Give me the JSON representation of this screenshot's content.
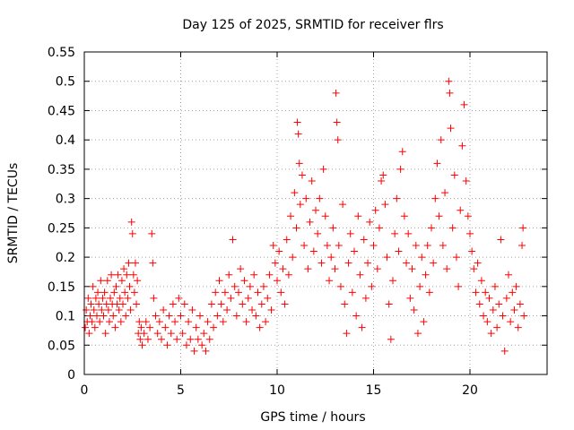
{
  "chart_data": {
    "type": "scatter",
    "title": "Day 125 of 2025, SRMTID for receiver flrs",
    "xlabel": "GPS time / hours",
    "ylabel": "SRMTID / TECUs",
    "xlim": [
      0,
      24
    ],
    "ylim": [
      0,
      0.55
    ],
    "xticks": [
      0,
      5,
      10,
      15,
      20
    ],
    "yticks": [
      0,
      0.05,
      0.1,
      0.15,
      0.2,
      0.25,
      0.3,
      0.35,
      0.4,
      0.45,
      0.5,
      0.55
    ],
    "xtick_labels": [
      "0",
      "5",
      "10",
      "15",
      "20"
    ],
    "ytick_labels": [
      "0",
      "0.05",
      "0.1",
      "0.15",
      "0.2",
      "0.25",
      "0.3",
      "0.35",
      "0.4",
      "0.45",
      "0.5",
      "0.55"
    ],
    "grid": true,
    "marker": "plus",
    "color": "#ff0000",
    "points": [
      [
        0.05,
        0.08
      ],
      [
        0.1,
        0.11
      ],
      [
        0.15,
        0.09
      ],
      [
        0.2,
        0.13
      ],
      [
        0.25,
        0.07
      ],
      [
        0.3,
        0.1
      ],
      [
        0.35,
        0.12
      ],
      [
        0.4,
        0.09
      ],
      [
        0.45,
        0.15
      ],
      [
        0.5,
        0.11
      ],
      [
        0.55,
        0.08
      ],
      [
        0.6,
        0.13
      ],
      [
        0.65,
        0.1
      ],
      [
        0.7,
        0.14
      ],
      [
        0.75,
        0.12
      ],
      [
        0.8,
        0.09
      ],
      [
        0.85,
        0.16
      ],
      [
        0.9,
        0.11
      ],
      [
        0.95,
        0.13
      ],
      [
        1.0,
        0.1
      ],
      [
        1.05,
        0.14
      ],
      [
        1.1,
        0.07
      ],
      [
        1.15,
        0.12
      ],
      [
        1.2,
        0.16
      ],
      [
        1.25,
        0.11
      ],
      [
        1.3,
        0.09
      ],
      [
        1.35,
        0.13
      ],
      [
        1.4,
        0.17
      ],
      [
        1.45,
        0.12
      ],
      [
        1.5,
        0.1
      ],
      [
        1.55,
        0.14
      ],
      [
        1.6,
        0.08
      ],
      [
        1.65,
        0.15
      ],
      [
        1.7,
        0.12
      ],
      [
        1.75,
        0.17
      ],
      [
        1.8,
        0.11
      ],
      [
        1.85,
        0.13
      ],
      [
        1.9,
        0.09
      ],
      [
        1.95,
        0.16
      ],
      [
        2.0,
        0.12
      ],
      [
        2.05,
        0.18
      ],
      [
        2.1,
        0.14
      ],
      [
        2.15,
        0.1
      ],
      [
        2.2,
        0.17
      ],
      [
        2.25,
        0.13
      ],
      [
        2.3,
        0.19
      ],
      [
        2.35,
        0.15
      ],
      [
        2.4,
        0.11
      ],
      [
        2.45,
        0.26
      ],
      [
        2.5,
        0.24
      ],
      [
        2.55,
        0.17
      ],
      [
        2.6,
        0.14
      ],
      [
        2.65,
        0.19
      ],
      [
        2.7,
        0.12
      ],
      [
        2.75,
        0.16
      ],
      [
        2.8,
        0.07
      ],
      [
        2.85,
        0.09
      ],
      [
        2.9,
        0.06
      ],
      [
        2.95,
        0.08
      ],
      [
        3.0,
        0.05
      ],
      [
        3.1,
        0.07
      ],
      [
        3.2,
        0.09
      ],
      [
        3.3,
        0.06
      ],
      [
        3.4,
        0.08
      ],
      [
        3.5,
        0.24
      ],
      [
        3.55,
        0.19
      ],
      [
        3.6,
        0.13
      ],
      [
        3.7,
        0.1
      ],
      [
        3.8,
        0.07
      ],
      [
        3.9,
        0.09
      ],
      [
        4.0,
        0.06
      ],
      [
        4.1,
        0.11
      ],
      [
        4.2,
        0.08
      ],
      [
        4.3,
        0.05
      ],
      [
        4.4,
        0.1
      ],
      [
        4.5,
        0.07
      ],
      [
        4.6,
        0.12
      ],
      [
        4.7,
        0.09
      ],
      [
        4.8,
        0.06
      ],
      [
        4.9,
        0.13
      ],
      [
        5.0,
        0.1
      ],
      [
        5.1,
        0.07
      ],
      [
        5.2,
        0.12
      ],
      [
        5.3,
        0.05
      ],
      [
        5.4,
        0.09
      ],
      [
        5.5,
        0.06
      ],
      [
        5.6,
        0.11
      ],
      [
        5.7,
        0.04
      ],
      [
        5.8,
        0.08
      ],
      [
        5.9,
        0.06
      ],
      [
        6.0,
        0.1
      ],
      [
        6.1,
        0.05
      ],
      [
        6.2,
        0.07
      ],
      [
        6.3,
        0.04
      ],
      [
        6.4,
        0.09
      ],
      [
        6.5,
        0.06
      ],
      [
        6.6,
        0.12
      ],
      [
        6.7,
        0.08
      ],
      [
        6.8,
        0.14
      ],
      [
        6.9,
        0.1
      ],
      [
        7.0,
        0.16
      ],
      [
        7.1,
        0.12
      ],
      [
        7.2,
        0.09
      ],
      [
        7.3,
        0.14
      ],
      [
        7.4,
        0.11
      ],
      [
        7.5,
        0.17
      ],
      [
        7.6,
        0.13
      ],
      [
        7.7,
        0.23
      ],
      [
        7.8,
        0.15
      ],
      [
        7.9,
        0.1
      ],
      [
        8.0,
        0.14
      ],
      [
        8.1,
        0.18
      ],
      [
        8.2,
        0.12
      ],
      [
        8.3,
        0.16
      ],
      [
        8.4,
        0.09
      ],
      [
        8.5,
        0.13
      ],
      [
        8.6,
        0.15
      ],
      [
        8.7,
        0.11
      ],
      [
        8.8,
        0.17
      ],
      [
        8.9,
        0.1
      ],
      [
        9.0,
        0.14
      ],
      [
        9.1,
        0.08
      ],
      [
        9.2,
        0.12
      ],
      [
        9.3,
        0.15
      ],
      [
        9.4,
        0.09
      ],
      [
        9.5,
        0.13
      ],
      [
        9.6,
        0.17
      ],
      [
        9.7,
        0.11
      ],
      [
        9.8,
        0.22
      ],
      [
        9.9,
        0.19
      ],
      [
        10.0,
        0.16
      ],
      [
        10.1,
        0.21
      ],
      [
        10.2,
        0.14
      ],
      [
        10.3,
        0.18
      ],
      [
        10.4,
        0.12
      ],
      [
        10.5,
        0.23
      ],
      [
        10.6,
        0.17
      ],
      [
        10.7,
        0.27
      ],
      [
        10.8,
        0.2
      ],
      [
        10.9,
        0.31
      ],
      [
        11.0,
        0.25
      ],
      [
        11.05,
        0.43
      ],
      [
        11.1,
        0.41
      ],
      [
        11.15,
        0.36
      ],
      [
        11.2,
        0.29
      ],
      [
        11.3,
        0.34
      ],
      [
        11.4,
        0.22
      ],
      [
        11.5,
        0.3
      ],
      [
        11.6,
        0.18
      ],
      [
        11.7,
        0.26
      ],
      [
        11.8,
        0.33
      ],
      [
        11.9,
        0.21
      ],
      [
        12.0,
        0.28
      ],
      [
        12.1,
        0.24
      ],
      [
        12.2,
        0.3
      ],
      [
        12.3,
        0.19
      ],
      [
        12.4,
        0.35
      ],
      [
        12.5,
        0.27
      ],
      [
        12.6,
        0.22
      ],
      [
        12.7,
        0.16
      ],
      [
        12.8,
        0.2
      ],
      [
        12.9,
        0.25
      ],
      [
        13.0,
        0.18
      ],
      [
        13.05,
        0.48
      ],
      [
        13.1,
        0.43
      ],
      [
        13.15,
        0.4
      ],
      [
        13.2,
        0.22
      ],
      [
        13.3,
        0.15
      ],
      [
        13.4,
        0.29
      ],
      [
        13.5,
        0.12
      ],
      [
        13.6,
        0.07
      ],
      [
        13.7,
        0.19
      ],
      [
        13.8,
        0.24
      ],
      [
        13.9,
        0.14
      ],
      [
        14.0,
        0.21
      ],
      [
        14.1,
        0.1
      ],
      [
        14.2,
        0.27
      ],
      [
        14.3,
        0.17
      ],
      [
        14.4,
        0.08
      ],
      [
        14.5,
        0.23
      ],
      [
        14.6,
        0.13
      ],
      [
        14.7,
        0.19
      ],
      [
        14.8,
        0.26
      ],
      [
        14.9,
        0.15
      ],
      [
        15.0,
        0.22
      ],
      [
        15.1,
        0.28
      ],
      [
        15.2,
        0.18
      ],
      [
        15.3,
        0.25
      ],
      [
        15.4,
        0.33
      ],
      [
        15.5,
        0.34
      ],
      [
        15.6,
        0.29
      ],
      [
        15.7,
        0.2
      ],
      [
        15.8,
        0.12
      ],
      [
        15.9,
        0.06
      ],
      [
        16.0,
        0.16
      ],
      [
        16.1,
        0.24
      ],
      [
        16.2,
        0.3
      ],
      [
        16.3,
        0.21
      ],
      [
        16.4,
        0.35
      ],
      [
        16.5,
        0.38
      ],
      [
        16.6,
        0.27
      ],
      [
        16.7,
        0.19
      ],
      [
        16.8,
        0.24
      ],
      [
        16.9,
        0.13
      ],
      [
        17.0,
        0.18
      ],
      [
        17.1,
        0.11
      ],
      [
        17.2,
        0.22
      ],
      [
        17.3,
        0.07
      ],
      [
        17.4,
        0.15
      ],
      [
        17.5,
        0.2
      ],
      [
        17.6,
        0.09
      ],
      [
        17.7,
        0.17
      ],
      [
        17.8,
        0.22
      ],
      [
        17.9,
        0.14
      ],
      [
        18.0,
        0.25
      ],
      [
        18.1,
        0.19
      ],
      [
        18.2,
        0.3
      ],
      [
        18.3,
        0.36
      ],
      [
        18.4,
        0.27
      ],
      [
        18.5,
        0.4
      ],
      [
        18.6,
        0.22
      ],
      [
        18.7,
        0.31
      ],
      [
        18.8,
        0.18
      ],
      [
        18.9,
        0.5
      ],
      [
        18.95,
        0.48
      ],
      [
        19.0,
        0.42
      ],
      [
        19.1,
        0.25
      ],
      [
        19.2,
        0.34
      ],
      [
        19.3,
        0.2
      ],
      [
        19.4,
        0.15
      ],
      [
        19.5,
        0.28
      ],
      [
        19.6,
        0.39
      ],
      [
        19.7,
        0.46
      ],
      [
        19.8,
        0.33
      ],
      [
        19.9,
        0.27
      ],
      [
        20.0,
        0.24
      ],
      [
        20.1,
        0.21
      ],
      [
        20.2,
        0.18
      ],
      [
        20.3,
        0.14
      ],
      [
        20.4,
        0.19
      ],
      [
        20.5,
        0.12
      ],
      [
        20.6,
        0.16
      ],
      [
        20.7,
        0.1
      ],
      [
        20.8,
        0.14
      ],
      [
        20.9,
        0.09
      ],
      [
        21.0,
        0.13
      ],
      [
        21.1,
        0.07
      ],
      [
        21.2,
        0.11
      ],
      [
        21.3,
        0.15
      ],
      [
        21.4,
        0.08
      ],
      [
        21.5,
        0.12
      ],
      [
        21.6,
        0.23
      ],
      [
        21.7,
        0.1
      ],
      [
        21.8,
        0.04
      ],
      [
        21.9,
        0.13
      ],
      [
        22.0,
        0.17
      ],
      [
        22.1,
        0.09
      ],
      [
        22.2,
        0.14
      ],
      [
        22.3,
        0.11
      ],
      [
        22.4,
        0.15
      ],
      [
        22.5,
        0.08
      ],
      [
        22.6,
        0.12
      ],
      [
        22.7,
        0.22
      ],
      [
        22.75,
        0.25
      ],
      [
        22.8,
        0.1
      ]
    ]
  }
}
